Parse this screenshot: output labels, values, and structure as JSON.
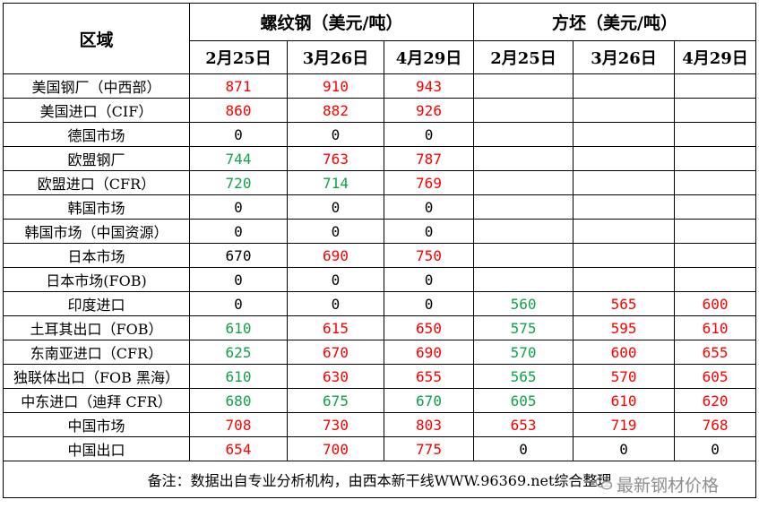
{
  "table": {
    "region_header": "区域",
    "groups": [
      "螺纹钢（美元/吨）",
      "方坯（美元/吨）"
    ],
    "dates": [
      "2月25日",
      "3月26日",
      "4月29日",
      "2月25日",
      "3月26日",
      "4月29日"
    ],
    "rows": [
      {
        "region": "美国钢厂（中西部）",
        "values": [
          "871",
          "910",
          "943",
          "",
          "",
          ""
        ],
        "colors": [
          "red",
          "red",
          "red",
          "",
          "",
          ""
        ]
      },
      {
        "region": "美国进口（CIF）",
        "values": [
          "860",
          "882",
          "926",
          "",
          "",
          ""
        ],
        "colors": [
          "red",
          "red",
          "red",
          "",
          "",
          ""
        ]
      },
      {
        "region": "德国市场",
        "values": [
          "0",
          "0",
          "0",
          "",
          "",
          ""
        ],
        "colors": [
          "black",
          "black",
          "black",
          "",
          "",
          ""
        ]
      },
      {
        "region": "欧盟钢厂",
        "values": [
          "744",
          "763",
          "787",
          "",
          "",
          ""
        ],
        "colors": [
          "green",
          "red",
          "red",
          "",
          "",
          ""
        ]
      },
      {
        "region": "欧盟进口（CFR）",
        "values": [
          "720",
          "714",
          "769",
          "",
          "",
          ""
        ],
        "colors": [
          "green",
          "green",
          "red",
          "",
          "",
          ""
        ]
      },
      {
        "region": "韩国市场",
        "values": [
          "0",
          "0",
          "0",
          "",
          "",
          ""
        ],
        "colors": [
          "black",
          "black",
          "black",
          "",
          "",
          ""
        ]
      },
      {
        "region": "韩国市场（中国资源）",
        "values": [
          "0",
          "0",
          "0",
          "",
          "",
          ""
        ],
        "colors": [
          "black",
          "black",
          "black",
          "",
          "",
          ""
        ]
      },
      {
        "region": "日本市场",
        "values": [
          "670",
          "690",
          "750",
          "",
          "",
          ""
        ],
        "colors": [
          "black",
          "red",
          "red",
          "",
          "",
          ""
        ]
      },
      {
        "region": "日本市场(FOB)",
        "values": [
          "0",
          "0",
          "0",
          "",
          "",
          ""
        ],
        "colors": [
          "black",
          "black",
          "black",
          "",
          "",
          ""
        ]
      },
      {
        "region": "印度进口",
        "values": [
          "0",
          "0",
          "0",
          "560",
          "565",
          "600"
        ],
        "colors": [
          "black",
          "black",
          "black",
          "green",
          "red",
          "red"
        ]
      },
      {
        "region": "土耳其出口（FOB）",
        "values": [
          "610",
          "615",
          "650",
          "575",
          "595",
          "610"
        ],
        "colors": [
          "green",
          "red",
          "red",
          "green",
          "red",
          "red"
        ]
      },
      {
        "region": "东南亚进口（CFR）",
        "values": [
          "625",
          "670",
          "690",
          "570",
          "600",
          "655"
        ],
        "colors": [
          "green",
          "red",
          "red",
          "green",
          "red",
          "red"
        ]
      },
      {
        "region": "独联体出口（FOB 黑海）",
        "values": [
          "610",
          "630",
          "655",
          "565",
          "570",
          "605"
        ],
        "colors": [
          "green",
          "red",
          "red",
          "green",
          "red",
          "red"
        ]
      },
      {
        "region": "中东进口（迪拜 CFR）",
        "values": [
          "680",
          "675",
          "670",
          "605",
          "610",
          "620"
        ],
        "colors": [
          "green",
          "green",
          "green",
          "green",
          "red",
          "red"
        ]
      },
      {
        "region": "中国市场",
        "values": [
          "708",
          "730",
          "803",
          "653",
          "719",
          "768"
        ],
        "colors": [
          "red",
          "red",
          "red",
          "red",
          "red",
          "red"
        ]
      },
      {
        "region": "中国出口",
        "values": [
          "654",
          "700",
          "775",
          "0",
          "0",
          "0"
        ],
        "colors": [
          "red",
          "red",
          "red",
          "black",
          "black",
          "black"
        ]
      }
    ],
    "note": "备注：数据出自专业分析机构，由西本新干线WWW.96369.net综合整理"
  },
  "watermark": {
    "text": "最新钢材价格",
    "icon": "wechat-icon"
  },
  "colors": {
    "red": "#ff0000",
    "green": "#11a34a",
    "black": "#000000"
  }
}
